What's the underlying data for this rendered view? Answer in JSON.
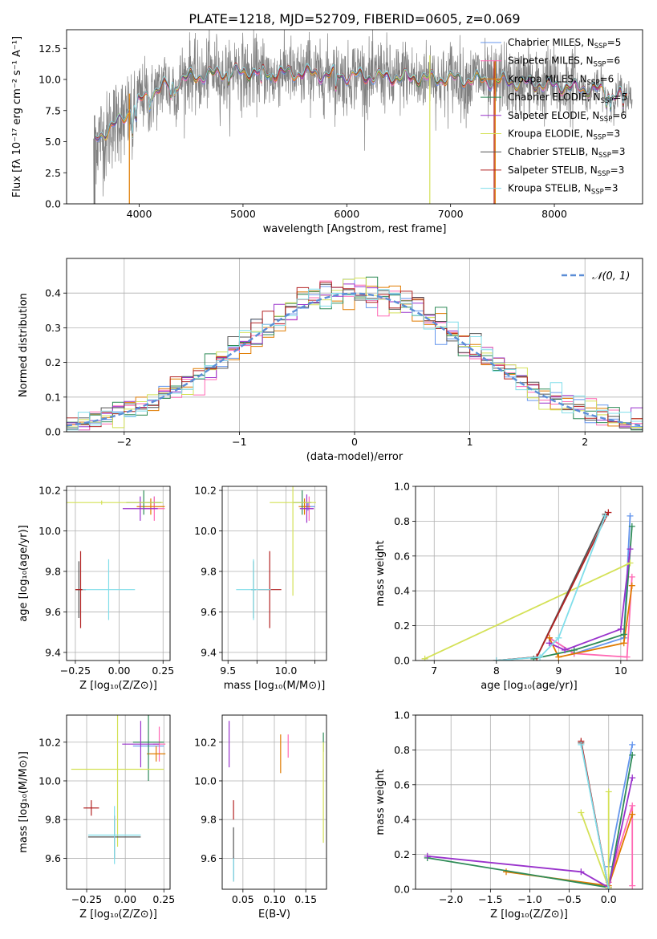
{
  "figure": {
    "title": "PLATE=1218, MJD=52709, FIBERID=0605, z=0.069"
  },
  "colors": {
    "Chabrier MILES": "#6495ed",
    "Salpeter MILES": "#ff69b4",
    "Kroupa MILES": "#e07b00",
    "Chabrier ELODIE": "#2e8b57",
    "Salpeter ELODIE": "#9932cc",
    "Kroupa ELODIE": "#d4e157",
    "Chabrier STELIB": "#555555",
    "Salpeter STELIB": "#b22222",
    "Kroupa STELIB": "#80deea",
    "data": "#808080",
    "normal": "#5b8dd6"
  },
  "legend": [
    {
      "key": "Chabrier MILES",
      "label": "Chabrier MILES, N",
      "sub": "SSP",
      "suffix": "=5"
    },
    {
      "key": "Salpeter MILES",
      "label": "Salpeter MILES, N",
      "sub": "SSP",
      "suffix": "=6"
    },
    {
      "key": "Kroupa MILES",
      "label": "Kroupa MILES, N",
      "sub": "SSP",
      "suffix": "=6"
    },
    {
      "key": "Chabrier ELODIE",
      "label": "Chabrier ELODIE, N",
      "sub": "SSP",
      "suffix": "=5"
    },
    {
      "key": "Salpeter ELODIE",
      "label": "Salpeter ELODIE, N",
      "sub": "SSP",
      "suffix": "=6"
    },
    {
      "key": "Kroupa ELODIE",
      "label": "Kroupa ELODIE, N",
      "sub": "SSP",
      "suffix": "=3"
    },
    {
      "key": "Chabrier STELIB",
      "label": "Chabrier STELIB, N",
      "sub": "SSP",
      "suffix": "=3"
    },
    {
      "key": "Salpeter STELIB",
      "label": "Salpeter STELIB, N",
      "sub": "SSP",
      "suffix": "=3"
    },
    {
      "key": "Kroupa STELIB",
      "label": "Kroupa STELIB, N",
      "sub": "SSP",
      "suffix": "=3"
    }
  ],
  "chart_data": [
    {
      "id": "spectrum",
      "type": "line",
      "xlabel": "wavelength [Angstrom, rest frame]",
      "ylabel": "Flux [fλ 10⁻¹⁷ erg cm⁻² s⁻¹ A⁻¹]",
      "xlim": [
        3300,
        8850
      ],
      "ylim": [
        0,
        14
      ],
      "xticks": [
        4000,
        5000,
        6000,
        7000,
        8000
      ],
      "yticks": [
        0.0,
        2.5,
        5.0,
        7.5,
        10.0,
        12.5
      ],
      "continuum_knots": {
        "x": [
          3570,
          3650,
          3800,
          3950,
          4100,
          4300,
          4500,
          4800,
          5000,
          5300,
          5600,
          6000,
          6400,
          6800,
          7200,
          7600,
          8000,
          8400,
          8600,
          8800
        ],
        "y": [
          5.3,
          5.6,
          6.6,
          7.9,
          8.9,
          9.6,
          10.2,
          10.5,
          10.6,
          10.5,
          10.5,
          10.3,
          10.2,
          10.1,
          10.0,
          9.8,
          9.5,
          9.2,
          8.8,
          8.3
        ]
      },
      "absorption_features": [
        {
          "x": 3934,
          "depth": 2.0
        },
        {
          "x": 3969,
          "depth": 1.6
        },
        {
          "x": 4101,
          "depth": 0.8
        },
        {
          "x": 4304,
          "depth": 1.0
        },
        {
          "x": 4340,
          "depth": 0.8
        },
        {
          "x": 4861,
          "depth": 0.7
        },
        {
          "x": 5175,
          "depth": 1.2
        },
        {
          "x": 5270,
          "depth": 0.5
        },
        {
          "x": 5893,
          "depth": 1.5
        },
        {
          "x": 8500,
          "depth": 0.8
        },
        {
          "x": 8542,
          "depth": 1.2
        },
        {
          "x": 8662,
          "depth": 1.0
        }
      ],
      "masked_drops": [
        {
          "x": 3570,
          "model": "Chabrier STELIB"
        },
        {
          "x": 3905,
          "model": "Kroupa MILES"
        },
        {
          "x": 6800,
          "model": "Kroupa ELODIE"
        },
        {
          "x": 7420,
          "model": "Salpeter STELIB"
        },
        {
          "x": 7430,
          "model": "Kroupa MILES"
        }
      ],
      "noise_amplitude": 1.4
    },
    {
      "id": "residuals",
      "type": "histogram",
      "xlabel": "(data-model)/error",
      "ylabel": "Normed distribution",
      "xlim": [
        -2.5,
        2.5
      ],
      "ylim": [
        0,
        0.5
      ],
      "xticks": [
        -2,
        -1,
        0,
        1,
        2
      ],
      "yticks": [
        0.0,
        0.1,
        0.2,
        0.3,
        0.4
      ],
      "bin_edges_start": -2.5,
      "bin_width": 0.1,
      "n_bins": 50,
      "normal_label": "𝒩(0, 1)"
    },
    {
      "id": "age-vs-Z",
      "type": "errorbar",
      "xlabel": "Z [log₁₀(Z/Z⊙)]",
      "ylabel": "age  [log₁₀(age/yr)]",
      "xlim": [
        -0.3,
        0.29
      ],
      "ylim": [
        9.36,
        10.22
      ],
      "xticks": [
        -0.25,
        0.0,
        0.25
      ],
      "xticklabels": [
        "−0.25",
        "0.00",
        "0.25"
      ],
      "yticks": [
        9.4,
        9.6,
        9.8,
        10.0,
        10.2
      ],
      "points": [
        {
          "model": "Chabrier MILES",
          "x": 0.2,
          "xerr": 0.04,
          "y": 10.14,
          "yerr": 0.03
        },
        {
          "model": "Salpeter MILES",
          "x": 0.2,
          "xerr": 0.06,
          "y": 10.11,
          "yerr": 0.06
        },
        {
          "model": "Kroupa MILES",
          "x": 0.18,
          "xerr": 0.08,
          "y": 10.12,
          "yerr": 0.04
        },
        {
          "model": "Chabrier ELODIE",
          "x": 0.14,
          "xerr": 0.1,
          "y": 10.14,
          "yerr": 0.06
        },
        {
          "model": "Salpeter ELODIE",
          "x": 0.12,
          "xerr": 0.1,
          "y": 10.11,
          "yerr": 0.06
        },
        {
          "model": "Kroupa ELODIE",
          "x": -0.1,
          "xerr": 0.35,
          "y": 10.14,
          "yerr": 0.01
        },
        {
          "model": "Chabrier STELIB",
          "x": -0.23,
          "xerr": 0.02,
          "y": 9.71,
          "yerr": 0.14
        },
        {
          "model": "Salpeter STELIB",
          "x": -0.22,
          "xerr": 0.03,
          "y": 9.71,
          "yerr": 0.19
        },
        {
          "model": "Kroupa STELIB",
          "x": -0.06,
          "xerr": 0.15,
          "y": 9.71,
          "yerr": 0.15
        }
      ]
    },
    {
      "id": "age-vs-mass",
      "type": "errorbar",
      "xlabel": "mass [log₁₀(M/M⊙)]",
      "ylabel": "",
      "xlim": [
        9.45,
        10.35
      ],
      "ylim": [
        9.36,
        10.22
      ],
      "xticks": [
        9.5,
        9.75,
        10.0,
        10.25
      ],
      "xticklabels": [
        "9.5",
        "",
        "10.0",
        ""
      ],
      "yticks": [
        9.4,
        9.6,
        9.8,
        10.0,
        10.2
      ],
      "points": [
        {
          "model": "Chabrier MILES",
          "x": 10.19,
          "xerr": 0.06,
          "y": 10.12,
          "yerr": 0.02
        },
        {
          "model": "Salpeter MILES",
          "x": 10.2,
          "xerr": 0.04,
          "y": 10.11,
          "yerr": 0.06
        },
        {
          "model": "Kroupa MILES",
          "x": 10.16,
          "xerr": 0.05,
          "y": 10.12,
          "yerr": 0.04
        },
        {
          "model": "Chabrier ELODIE",
          "x": 10.14,
          "xerr": 0.08,
          "y": 10.14,
          "yerr": 0.06
        },
        {
          "model": "Salpeter ELODIE",
          "x": 10.18,
          "xerr": 0.06,
          "y": 10.11,
          "yerr": 0.07
        },
        {
          "model": "Kroupa ELODIE",
          "x": 10.06,
          "xerr": 0.2,
          "y": 10.14,
          "yerr": 0.46
        },
        {
          "model": "Chabrier STELIB",
          "x": 9.72,
          "xerr": 0.02,
          "y": 9.71,
          "yerr": 0.14
        },
        {
          "model": "Salpeter STELIB",
          "x": 9.86,
          "xerr": 0.1,
          "y": 9.71,
          "yerr": 0.19
        },
        {
          "model": "Kroupa STELIB",
          "x": 9.72,
          "xerr": 0.15,
          "y": 9.71,
          "yerr": 0.15
        }
      ]
    },
    {
      "id": "massweight-vs-age",
      "type": "line",
      "xlabel": "age  [log₁₀(age/yr)]",
      "ylabel": "mass weight",
      "xlim": [
        6.7,
        10.35
      ],
      "ylim": [
        0,
        1
      ],
      "xticks": [
        7,
        8,
        9,
        10
      ],
      "yticks": [
        0.0,
        0.2,
        0.4,
        0.6,
        0.8,
        1.0
      ],
      "series": [
        {
          "model": "Chabrier MILES",
          "x": [
            8.85,
            9.25,
            10.05,
            10.15
          ],
          "y": [
            0.13,
            0.04,
            0.13,
            0.83
          ]
        },
        {
          "model": "Salpeter MILES",
          "x": [
            8.85,
            9.25,
            10.1,
            10.18
          ],
          "y": [
            0.13,
            0.04,
            0.02,
            0.48
          ]
        },
        {
          "model": "Kroupa MILES",
          "x": [
            8.85,
            9.0,
            10.05,
            10.18
          ],
          "y": [
            0.13,
            0.02,
            0.1,
            0.43
          ]
        },
        {
          "model": "Chabrier ELODIE",
          "x": [
            8.6,
            9.25,
            10.05,
            10.18
          ],
          "y": [
            0.01,
            0.06,
            0.15,
            0.77
          ]
        },
        {
          "model": "Salpeter ELODIE",
          "x": [
            8.85,
            9.1,
            10.0,
            10.15
          ],
          "y": [
            0.1,
            0.06,
            0.18,
            0.64
          ]
        },
        {
          "model": "Kroupa ELODIE",
          "x": [
            6.85,
            10.15
          ],
          "y": [
            0.01,
            0.56
          ]
        },
        {
          "model": "Chabrier STELIB",
          "x": [
            8.0,
            8.65,
            9.75
          ],
          "y": [
            0.0,
            0.02,
            0.84
          ]
        },
        {
          "model": "Salpeter STELIB",
          "x": [
            8.0,
            8.65,
            9.8
          ],
          "y": [
            0.0,
            0.02,
            0.85
          ]
        },
        {
          "model": "Kroupa STELIB",
          "x": [
            8.0,
            8.7,
            9.0,
            9.75
          ],
          "y": [
            0.0,
            0.02,
            0.13,
            0.83
          ]
        }
      ]
    },
    {
      "id": "mass-vs-Z",
      "type": "errorbar",
      "xlabel": "Z [log₁₀(Z/Z⊙)]",
      "ylabel": "mass [log₁₀(M/M⊙)]",
      "xlim": [
        -0.38,
        0.29
      ],
      "ylim": [
        9.44,
        10.34
      ],
      "xticks": [
        -0.25,
        0.0,
        0.25
      ],
      "xticklabels": [
        "−0.25",
        "0.00",
        "0.25"
      ],
      "yticks": [
        9.6,
        9.8,
        10.0,
        10.2
      ],
      "points": [
        {
          "model": "Chabrier MILES",
          "x": 0.15,
          "xerr": 0.1,
          "y": 10.18,
          "yerr": 0.03
        },
        {
          "model": "Salpeter MILES",
          "x": 0.22,
          "xerr": 0.04,
          "y": 10.19,
          "yerr": 0.09
        },
        {
          "model": "Kroupa MILES",
          "x": 0.2,
          "xerr": 0.06,
          "y": 10.14,
          "yerr": 0.04
        },
        {
          "model": "Chabrier ELODIE",
          "x": 0.15,
          "xerr": 0.1,
          "y": 10.2,
          "yerr": 0.2
        },
        {
          "model": "Salpeter ELODIE",
          "x": 0.1,
          "xerr": 0.12,
          "y": 10.19,
          "yerr": 0.12
        },
        {
          "model": "Kroupa ELODIE",
          "x": -0.05,
          "xerr": 0.3,
          "y": 10.06,
          "yerr": 0.4
        },
        {
          "model": "Chabrier STELIB",
          "x": -0.07,
          "xerr": 0.17,
          "y": 9.71,
          "yerr": 0.11
        },
        {
          "model": "Salpeter STELIB",
          "x": -0.22,
          "xerr": 0.05,
          "y": 9.86,
          "yerr": 0.04
        },
        {
          "model": "Kroupa STELIB",
          "x": -0.07,
          "xerr": 0.17,
          "y": 9.72,
          "yerr": 0.15
        }
      ]
    },
    {
      "id": "mass-vs-EBV",
      "type": "errorbar",
      "xlabel": "E(B-V)",
      "ylabel": "",
      "xlim": [
        0.017,
        0.183
      ],
      "ylim": [
        9.44,
        10.34
      ],
      "xticks": [
        0.05,
        0.1,
        0.15
      ],
      "xticklabels": [
        "0.05",
        "0.10",
        "0.15"
      ],
      "yticks": [
        9.6,
        9.8,
        10.0,
        10.2
      ],
      "points": [
        {
          "model": "Chabrier MILES",
          "x": 0.035,
          "xerr": 0.0,
          "y": 9.55,
          "yerr": 0.06
        },
        {
          "model": "Salpeter MILES",
          "x": 0.122,
          "xerr": 0.0,
          "y": 10.18,
          "yerr": 0.06
        },
        {
          "model": "Kroupa MILES",
          "x": 0.11,
          "xerr": 0.0,
          "y": 10.14,
          "yerr": 0.1
        },
        {
          "model": "Chabrier ELODIE",
          "x": 0.178,
          "xerr": 0.0,
          "y": 10.2,
          "yerr": 0.05
        },
        {
          "model": "Salpeter ELODIE",
          "x": 0.028,
          "xerr": 0.0,
          "y": 10.19,
          "yerr": 0.12
        },
        {
          "model": "Kroupa ELODIE",
          "x": 0.178,
          "xerr": 0.0,
          "y": 9.94,
          "yerr": 0.26
        },
        {
          "model": "Chabrier STELIB",
          "x": 0.035,
          "xerr": 0.0,
          "y": 9.62,
          "yerr": 0.14
        },
        {
          "model": "Salpeter STELIB",
          "x": 0.035,
          "xerr": 0.0,
          "y": 9.85,
          "yerr": 0.05
        },
        {
          "model": "Kroupa STELIB",
          "x": 0.035,
          "xerr": 0.0,
          "y": 9.54,
          "yerr": 0.06
        }
      ]
    },
    {
      "id": "massweight-vs-Z",
      "type": "line",
      "xlabel": "Z [log₁₀(Z/Z⊙)]",
      "ylabel": "mass weight",
      "xlim": [
        -2.45,
        0.43
      ],
      "ylim": [
        0,
        1
      ],
      "xticks": [
        -2.0,
        -1.5,
        -1.0,
        -0.5,
        0.0
      ],
      "xticklabels": [
        "−2.0",
        "−1.5",
        "−1.0",
        "−0.5",
        "0.0"
      ],
      "yticks": [
        0.0,
        0.2,
        0.4,
        0.6,
        0.8,
        1.0
      ],
      "series": [
        {
          "model": "Chabrier MILES",
          "x": [
            0.0,
            0.3
          ],
          "y": [
            0.13,
            0.83
          ]
        },
        {
          "model": "Salpeter MILES",
          "x": [
            0.0,
            0.3,
            0.3
          ],
          "y": [
            0.04,
            0.48,
            0.02
          ]
        },
        {
          "model": "Kroupa MILES",
          "x": [
            -1.3,
            0.0,
            0.3
          ],
          "y": [
            0.1,
            0.02,
            0.43
          ]
        },
        {
          "model": "Chabrier ELODIE",
          "x": [
            -2.3,
            0.0,
            0.3
          ],
          "y": [
            0.18,
            0.01,
            0.77
          ]
        },
        {
          "model": "Salpeter ELODIE",
          "x": [
            -2.3,
            -0.35,
            0.0,
            0.3
          ],
          "y": [
            0.19,
            0.1,
            0.01,
            0.64
          ]
        },
        {
          "model": "Kroupa ELODIE",
          "x": [
            -0.35,
            0.0,
            0.0
          ],
          "y": [
            0.44,
            0.01,
            0.56
          ]
        },
        {
          "model": "Chabrier STELIB",
          "x": [
            -0.35,
            0.0
          ],
          "y": [
            0.84,
            0.0
          ]
        },
        {
          "model": "Salpeter STELIB",
          "x": [
            -0.35,
            0.0
          ],
          "y": [
            0.85,
            0.0
          ]
        },
        {
          "model": "Kroupa STELIB",
          "x": [
            -0.35,
            0.0
          ],
          "y": [
            0.83,
            0.0
          ]
        }
      ]
    }
  ]
}
